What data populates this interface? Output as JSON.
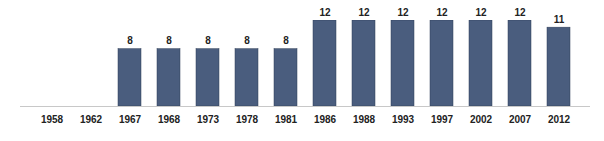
{
  "chart_data": {
    "type": "bar",
    "categories": [
      "1958",
      "1962",
      "1967",
      "1968",
      "1973",
      "1978",
      "1981",
      "1986",
      "1988",
      "1993",
      "1997",
      "2002",
      "2007",
      "2012"
    ],
    "values": [
      null,
      null,
      8,
      8,
      8,
      8,
      8,
      12,
      12,
      12,
      12,
      12,
      12,
      11
    ],
    "color": "#4a5d7e",
    "ylim": [
      0,
      12
    ],
    "data_labels": true,
    "tick_labels": "x"
  }
}
